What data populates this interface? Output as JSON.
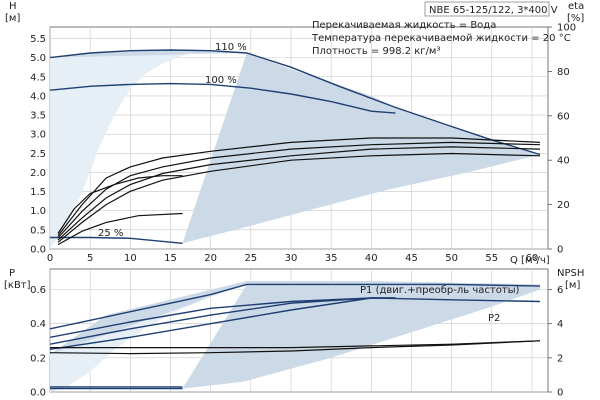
{
  "chart_data": [
    {
      "type": "line",
      "title": "NBE 65-125/122, 3*400 V",
      "notes": [
        "Перекачиваемая жидкость = Вода",
        "Температура перекачиваемой жидкости = 20 °C",
        "Плотность = 998.2 кг/м³"
      ],
      "y_unit_left": "[м]",
      "y_name_left": "H",
      "y_unit_right": "[%]",
      "y_name_right": "eta",
      "xlabel": "Q [м³/ч]",
      "xlim": [
        0,
        62
      ],
      "ylim": [
        0,
        5.8
      ],
      "ylim_right": [
        0,
        100
      ],
      "x_ticks": [
        0,
        5,
        10,
        15,
        20,
        25,
        30,
        35,
        40,
        45,
        50,
        55,
        60
      ],
      "y_ticks": [
        0.0,
        0.5,
        1.0,
        1.5,
        2.0,
        2.5,
        3.0,
        3.5,
        4.0,
        4.5,
        5.0,
        5.5
      ],
      "y_ticks_right": [
        0,
        20,
        40,
        60,
        80,
        100
      ],
      "grid": true,
      "shaded_region": {
        "upper_edge": [
          [
            0,
            5.0
          ],
          [
            5,
            5.12
          ],
          [
            10,
            5.18
          ],
          [
            15,
            5.2
          ],
          [
            20,
            5.18
          ],
          [
            24.5,
            5.12
          ],
          [
            30,
            4.7
          ],
          [
            40,
            4.0
          ],
          [
            43,
            3.7
          ],
          [
            50,
            3.2
          ],
          [
            55,
            2.85
          ],
          [
            61,
            2.47
          ]
        ],
        "lower_edge": [
          [
            0,
            0
          ],
          [
            2,
            0.6
          ],
          [
            4,
            1.5
          ],
          [
            6,
            2.6
          ],
          [
            8,
            3.5
          ],
          [
            10,
            4.2
          ],
          [
            12,
            4.6
          ],
          [
            14,
            4.85
          ],
          [
            17,
            5.1
          ],
          [
            24.5,
            5.12
          ]
        ],
        "bottom_edge": [
          [
            16.5,
            0.15
          ],
          [
            24,
            0.55
          ],
          [
            32,
            1.0
          ],
          [
            42,
            1.55
          ],
          [
            52,
            2.0
          ],
          [
            61,
            2.47
          ]
        ]
      },
      "series": [
        {
          "name": "110 %",
          "role": "head",
          "points": [
            [
              0,
              5.0
            ],
            [
              5,
              5.12
            ],
            [
              10,
              5.18
            ],
            [
              15,
              5.2
            ],
            [
              20,
              5.18
            ],
            [
              24.5,
              5.12
            ],
            [
              30,
              4.75
            ],
            [
              36,
              4.25
            ],
            [
              43,
              3.7
            ],
            [
              50,
              3.2
            ],
            [
              55,
              2.85
            ],
            [
              61,
              2.47
            ]
          ]
        },
        {
          "name": "100 %",
          "role": "head",
          "points": [
            [
              0,
              4.15
            ],
            [
              5,
              4.25
            ],
            [
              10,
              4.3
            ],
            [
              15,
              4.32
            ],
            [
              20,
              4.3
            ],
            [
              25,
              4.2
            ],
            [
              30,
              4.05
            ],
            [
              35,
              3.85
            ],
            [
              40,
              3.6
            ],
            [
              43,
              3.55
            ]
          ]
        },
        {
          "role": "head",
          "points": [
            [
              0,
              0.3
            ],
            [
              5,
              0.3
            ],
            [
              10,
              0.28
            ],
            [
              16.5,
              0.15
            ]
          ]
        },
        {
          "role": "efficiency",
          "axis": "right",
          "points": [
            [
              1,
              6
            ],
            [
              4,
              20
            ],
            [
              7,
              32
            ],
            [
              10,
              37
            ],
            [
              14,
              41
            ],
            [
              20,
              44
            ],
            [
              30,
              48
            ],
            [
              40,
              50
            ],
            [
              50,
              50
            ],
            [
              61,
              48
            ]
          ]
        },
        {
          "role": "efficiency",
          "axis": "right",
          "points": [
            [
              1,
              5
            ],
            [
              4,
              17
            ],
            [
              7,
              27
            ],
            [
              10,
              33
            ],
            [
              14,
              37
            ],
            [
              20,
              41
            ],
            [
              30,
              45
            ],
            [
              40,
              47
            ],
            [
              50,
              48
            ],
            [
              61,
              47
            ]
          ]
        },
        {
          "role": "efficiency",
          "axis": "right",
          "points": [
            [
              1,
              4
            ],
            [
              4,
              14
            ],
            [
              7,
              23
            ],
            [
              10,
              29
            ],
            [
              14,
              34
            ],
            [
              20,
              38
            ],
            [
              30,
              42
            ],
            [
              40,
              45
            ],
            [
              50,
              46
            ],
            [
              61,
              45
            ]
          ]
        },
        {
          "role": "efficiency",
          "axis": "right",
          "points": [
            [
              1,
              3
            ],
            [
              4,
              12
            ],
            [
              7,
              20
            ],
            [
              10,
              26
            ],
            [
              14,
              31
            ],
            [
              20,
              35
            ],
            [
              30,
              40
            ],
            [
              40,
              42
            ],
            [
              50,
              43
            ],
            [
              61,
              42
            ]
          ]
        },
        {
          "name": "25 %",
          "role": "efficiency",
          "axis": "right",
          "points": [
            [
              1,
              2
            ],
            [
              4,
              8
            ],
            [
              7,
              12
            ],
            [
              11,
              15
            ],
            [
              16.5,
              16
            ]
          ]
        },
        {
          "role": "efficiency",
          "axis": "right",
          "points": [
            [
              1,
              7
            ],
            [
              3,
              18
            ],
            [
              5,
              25
            ],
            [
              8,
              29
            ],
            [
              11,
              32
            ],
            [
              14,
              33
            ],
            [
              16.5,
              33
            ]
          ]
        }
      ],
      "annotations": [
        {
          "text": "110 %",
          "x": 24.5,
          "y": 5.12
        },
        {
          "text": "100 %",
          "x": 20.5,
          "y": 4.3
        },
        {
          "text": "25 %",
          "x": 6.5,
          "y": 0.4
        }
      ]
    },
    {
      "type": "line",
      "y_name_left": "P",
      "y_unit_left": "[кВт]",
      "y_name_right": "NPSH",
      "y_unit_right": "[м]",
      "xlim": [
        0,
        62
      ],
      "ylim": [
        0,
        0.72
      ],
      "ylim_right": [
        0,
        7.2
      ],
      "y_ticks": [
        0.0,
        0.2,
        0.4,
        0.6
      ],
      "y_ticks_right": [
        0,
        2,
        4,
        6
      ],
      "grid": true,
      "shaded_region": {
        "upper_edge": [
          [
            0,
            0.22
          ],
          [
            7,
            0.45
          ],
          [
            24.5,
            0.65
          ],
          [
            40,
            0.65
          ],
          [
            61,
            0.63
          ]
        ],
        "lower_edge": [
          [
            0,
            0.0
          ],
          [
            2,
            0.03
          ],
          [
            5,
            0.12
          ],
          [
            8,
            0.25
          ],
          [
            12,
            0.38
          ],
          [
            16,
            0.48
          ],
          [
            20,
            0.56
          ],
          [
            24.5,
            0.63
          ]
        ],
        "bottom_edge": [
          [
            16.5,
            0.02
          ],
          [
            24,
            0.06
          ],
          [
            35,
            0.2
          ],
          [
            45,
            0.35
          ],
          [
            55,
            0.5
          ],
          [
            61,
            0.6
          ]
        ]
      },
      "series": [
        {
          "name": "P1 (двиг.+преобр-ль частоты)",
          "role": "power",
          "points": [
            [
              0,
              0.37
            ],
            [
              5,
              0.42
            ],
            [
              10,
              0.47
            ],
            [
              15,
              0.52
            ],
            [
              20,
              0.57
            ],
            [
              24.5,
              0.63
            ],
            [
              30,
              0.63
            ],
            [
              40,
              0.63
            ],
            [
              50,
              0.63
            ],
            [
              61,
              0.62
            ]
          ]
        },
        {
          "name": "P2",
          "role": "power",
          "points": [
            [
              0,
              0.32
            ],
            [
              10,
              0.41
            ],
            [
              20,
              0.49
            ],
            [
              30,
              0.53
            ],
            [
              40,
              0.55
            ],
            [
              50,
              0.54
            ],
            [
              61,
              0.53
            ]
          ]
        },
        {
          "role": "power",
          "points": [
            [
              0,
              0.28
            ],
            [
              10,
              0.37
            ],
            [
              20,
              0.45
            ],
            [
              30,
              0.52
            ],
            [
              40,
              0.55
            ],
            [
              43,
              0.55
            ]
          ]
        },
        {
          "role": "power",
          "points": [
            [
              0,
              0.25
            ],
            [
              10,
              0.32
            ],
            [
              20,
              0.4
            ],
            [
              30,
              0.48
            ],
            [
              40,
              0.55
            ],
            [
              43,
              0.55
            ]
          ]
        },
        {
          "role": "power",
          "points": [
            [
              0,
              0.03
            ],
            [
              16.5,
              0.03
            ]
          ]
        },
        {
          "role": "power",
          "points": [
            [
              0,
              0.02
            ],
            [
              16.5,
              0.02
            ]
          ]
        },
        {
          "role": "npsh",
          "axis": "right",
          "points": [
            [
              0,
              2.6
            ],
            [
              10,
              2.6
            ],
            [
              20,
              2.6
            ],
            [
              30,
              2.6
            ],
            [
              40,
              2.7
            ],
            [
              50,
              2.8
            ],
            [
              61,
              3.0
            ]
          ]
        },
        {
          "role": "npsh",
          "axis": "right",
          "points": [
            [
              0,
              2.3
            ],
            [
              10,
              2.25
            ],
            [
              20,
              2.3
            ],
            [
              30,
              2.4
            ],
            [
              40,
              2.6
            ],
            [
              50,
              2.75
            ],
            [
              61,
              3.0
            ]
          ]
        }
      ]
    }
  ]
}
